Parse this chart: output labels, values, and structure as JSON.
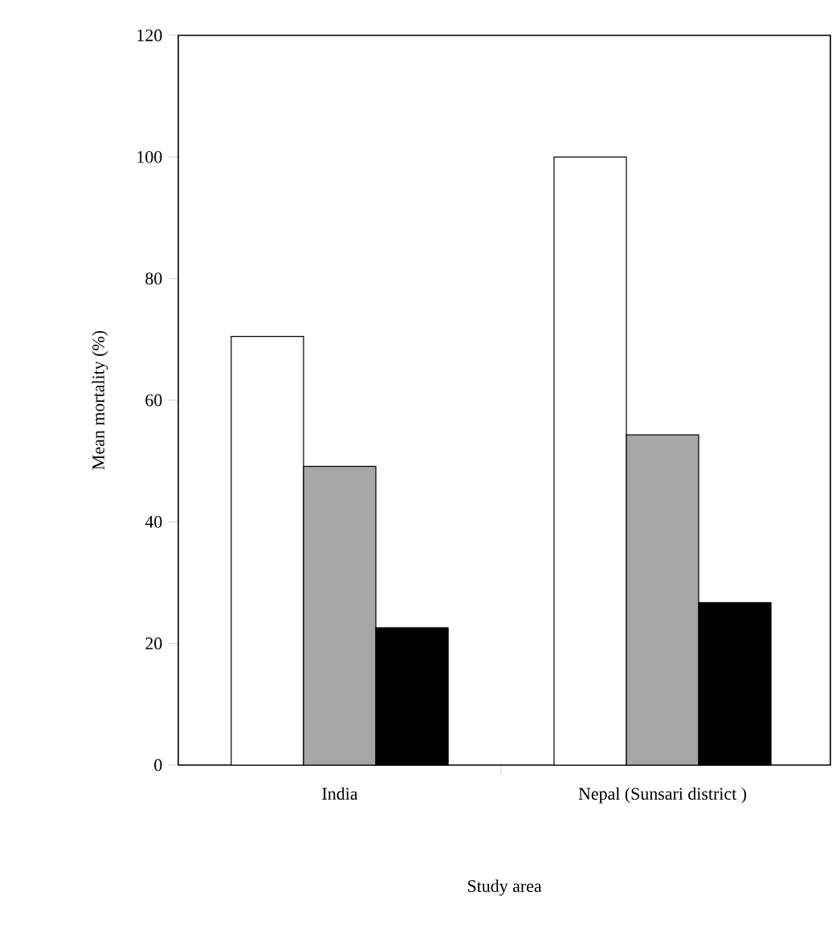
{
  "chart_data": {
    "type": "bar",
    "xlabel": "Study area",
    "ylabel": "Mean mortality (%)",
    "categories": [
      "India",
      "Nepal (Sunsari district )"
    ],
    "series": [
      {
        "color": "#ffffff",
        "values": [
          70.5,
          100
        ]
      },
      {
        "color": "#a6a6a6",
        "values": [
          49.1,
          54.3
        ]
      },
      {
        "color": "#000000",
        "values": [
          22.6,
          26.7
        ]
      }
    ],
    "ylim": [
      0,
      120
    ],
    "yticks": [
      0,
      20,
      40,
      60,
      80,
      100,
      120
    ]
  }
}
